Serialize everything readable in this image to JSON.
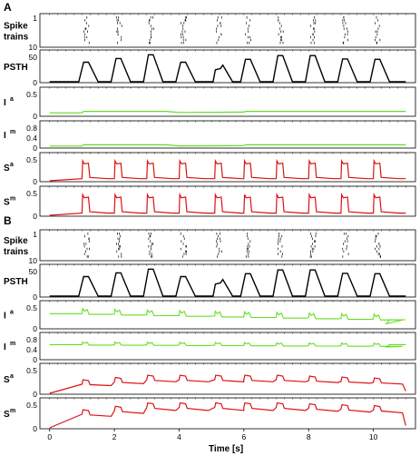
{
  "chart_data": {
    "type": "line",
    "xlabel": "Time  [s]",
    "xlim": [
      -0.3,
      11.3
    ],
    "xticks": [
      "0",
      "2",
      "4",
      "6",
      "8",
      "10"
    ],
    "colors": {
      "psth": "#000000",
      "input": "#66dd22",
      "synapse": "#dd1111",
      "spikes": "#000000"
    },
    "stim_onsets": [
      1.0,
      2.0,
      3.0,
      4.0,
      5.1,
      6.0,
      7.0,
      8.0,
      9.0,
      10.0
    ],
    "panels": [
      {
        "letter": "A",
        "rows": [
          {
            "label": "Spike",
            "label2": "trains",
            "kind": "raster",
            "ticks": [
              "1",
              "10"
            ]
          },
          {
            "label": "PSTH",
            "kind": "psth",
            "ticks": [
              "50",
              "0"
            ],
            "ylim": [
              0,
              70
            ],
            "peaks": [
              47,
              56,
              65,
              47,
              40,
              54,
              63,
              63,
              55,
              54
            ]
          },
          {
            "label": "I",
            "sup": "a",
            "kind": "input",
            "ticks": [
              "0.5",
              "0"
            ],
            "ylim": [
              0,
              0.7
            ],
            "baseline": 0.07,
            "level": 0.11
          },
          {
            "label": "I",
            "sup": "m",
            "kind": "input",
            "ticks": [
              "0.8",
              "0.4",
              "0"
            ],
            "ylim": [
              0,
              0.9
            ],
            "baseline": 0.04,
            "level": 0.09
          },
          {
            "label": "S",
            "sup": "a",
            "kind": "syn",
            "ticks": [
              "0.5",
              "0"
            ],
            "ylim": [
              0,
              0.6
            ],
            "baseline": 0.05,
            "level": 0.47
          },
          {
            "label": "S",
            "sup": "m",
            "kind": "syn",
            "ticks": [
              "0.5",
              "0"
            ],
            "ylim": [
              0,
              0.6
            ],
            "baseline": 0.05,
            "level": 0.47
          }
        ]
      },
      {
        "letter": "B",
        "rows": [
          {
            "label": "Spike",
            "label2": "trains",
            "kind": "raster",
            "ticks": [
              "1",
              "10"
            ]
          },
          {
            "label": "PSTH",
            "kind": "psth",
            "ticks": [
              "50",
              "0"
            ],
            "ylim": [
              0,
              70
            ],
            "peaks": [
              47,
              56,
              65,
              47,
              40,
              54,
              63,
              63,
              55,
              54
            ]
          },
          {
            "label": "I",
            "sup": "a",
            "kind": "inputB",
            "ticks": [
              "0.5",
              "0"
            ],
            "ylim": [
              0,
              0.6
            ],
            "start": 0.35,
            "end": 0.1
          },
          {
            "label": "I",
            "sup": "m",
            "kind": "inputB",
            "ticks": [
              "0.8",
              "0.4",
              "0"
            ],
            "ylim": [
              0,
              1.0
            ],
            "start": 0.6,
            "end": 0.5
          },
          {
            "label": "S",
            "sup": "a",
            "kind": "synB",
            "ticks": [
              "0.5",
              "0"
            ],
            "ylim": [
              0,
              0.6
            ],
            "start": 0.0,
            "plateau": 0.3
          },
          {
            "label": "S",
            "sup": "m",
            "kind": "synB",
            "ticks": [
              "0.5",
              "0"
            ],
            "ylim": [
              0,
              0.6
            ],
            "start": 0.0,
            "plateau": 0.45
          }
        ]
      }
    ]
  }
}
